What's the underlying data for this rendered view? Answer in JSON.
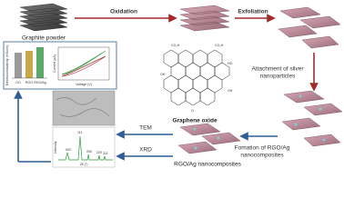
{
  "labels": {
    "graphite": "Graphite powder",
    "oxidation": "Oxidation",
    "exfoliation": "Exfoliation",
    "attachment": [
      "Attachment of silver",
      "nanoparticles"
    ],
    "graphene_oxide": "Graphene oxide",
    "formation": [
      "Fomation of RGO/Ag",
      "nanocomposites"
    ],
    "product": "RGO/Ag nanocomposites",
    "tem": "TEM",
    "xrd": "XRD"
  },
  "inset": {
    "y_axis": "Electroconductivity (mS/cm)",
    "bars": [
      "GO",
      "RGO",
      "RGO/Ag"
    ],
    "cv_y": "Current (µA)",
    "cv_x": "Voltage (V)",
    "xrd_peaks": [
      "002",
      "111",
      "200",
      "220",
      "311"
    ],
    "xrd_x": "2θ (°)",
    "xrd_y": "Intensity"
  },
  "structure": {
    "groups": [
      "CO₂H",
      "OH",
      "HO",
      "O",
      "CO₂H",
      "OH"
    ]
  }
}
